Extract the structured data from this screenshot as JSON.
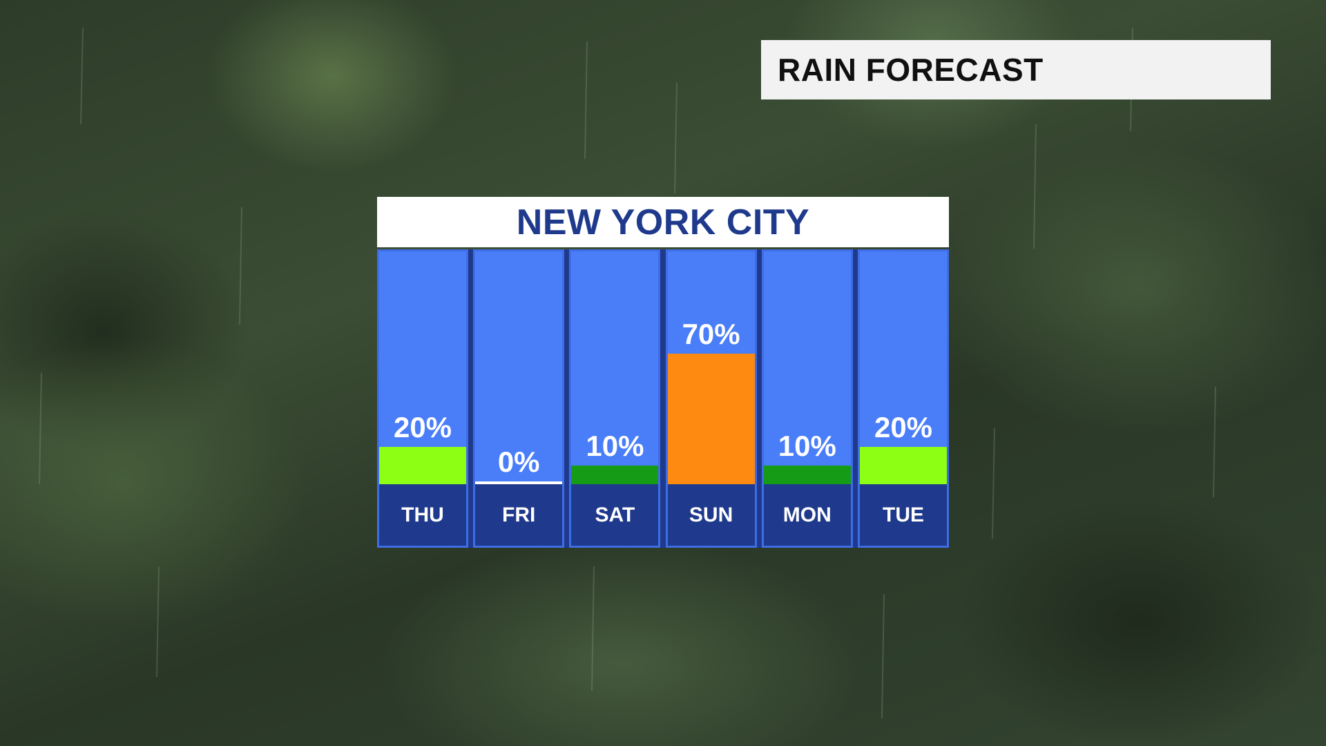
{
  "header": {
    "title": "RAIN FORECAST"
  },
  "panel": {
    "location": "NEW YORK CITY"
  },
  "chart_data": {
    "type": "bar",
    "title": "NEW YORK CITY",
    "categories": [
      "THU",
      "FRI",
      "SAT",
      "SUN",
      "MON",
      "TUE"
    ],
    "values": [
      20,
      0,
      10,
      70,
      10,
      20
    ],
    "labels": [
      "20%",
      "0%",
      "10%",
      "70%",
      "10%",
      "20%"
    ],
    "bar_colors": [
      "#8cff14",
      "#ffffff",
      "#169b17",
      "#ff8a12",
      "#169b17",
      "#8cff14"
    ],
    "unit": "%",
    "ylim": [
      0,
      100
    ],
    "grid": false
  },
  "colors": {
    "column_background": "#4a7ef8",
    "footer_navy": "#1f3a8c",
    "title_text": "#1f3a8c"
  }
}
